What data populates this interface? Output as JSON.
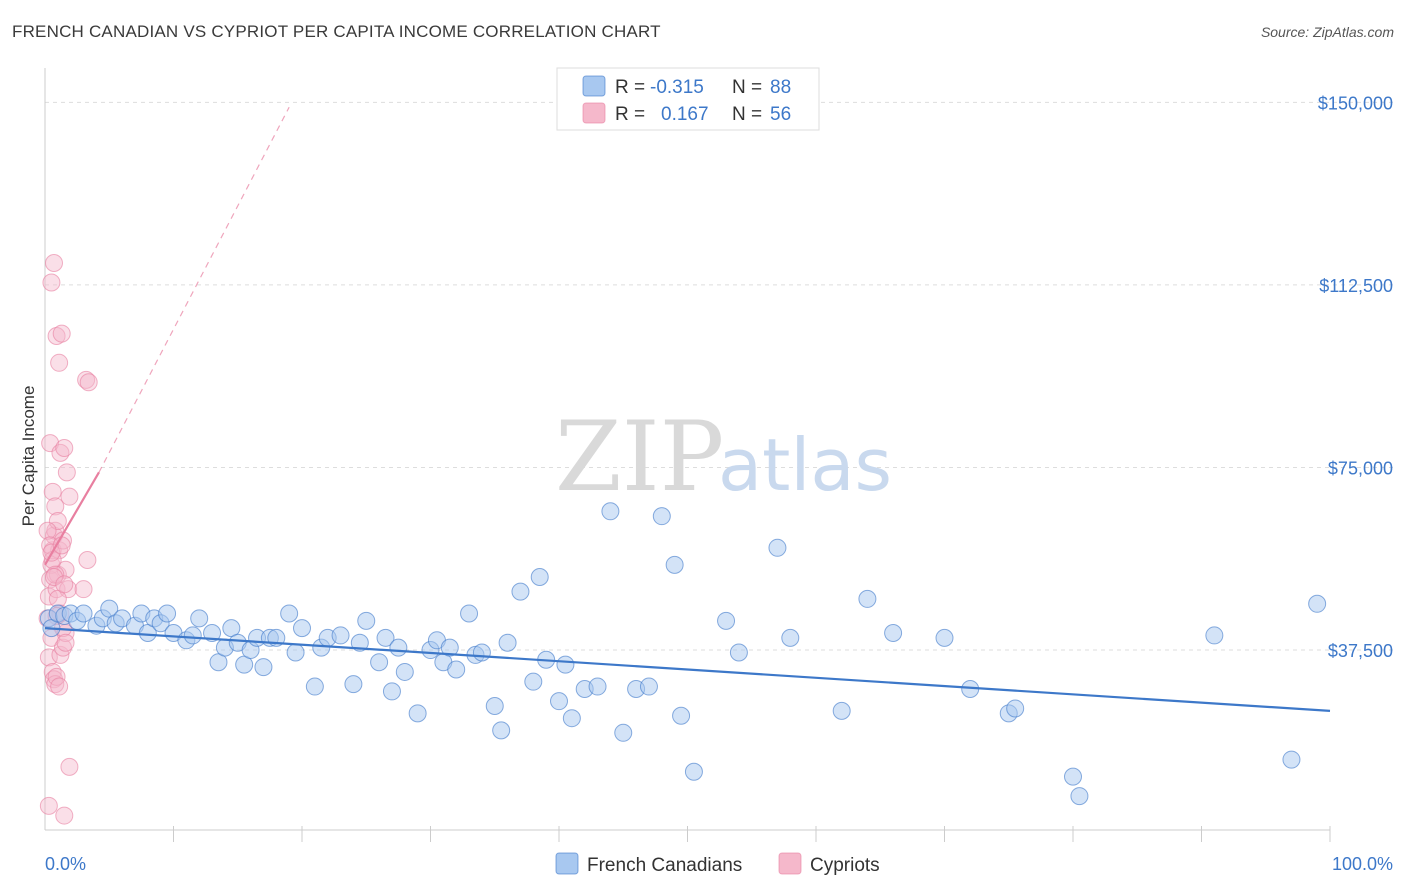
{
  "title": "FRENCH CANADIAN VS CYPRIOT PER CAPITA INCOME CORRELATION CHART",
  "source": "Source: ZipAtlas.com",
  "watermark": {
    "zip": "ZIP",
    "atlas": "atlas"
  },
  "colors": {
    "blue": "#3d78c9",
    "blue_fill": "#a8c8f0",
    "pink": "#e87fa0",
    "pink_fill": "#f5b8cb",
    "grid": "#dddddd"
  },
  "legend": {
    "rows": [
      {
        "r_label": "R =",
        "r_value": "-0.315",
        "n_label": "N =",
        "n_value": "88"
      },
      {
        "r_label": "R =",
        "r_value": "0.167",
        "n_label": "N =",
        "n_value": "56"
      }
    ]
  },
  "bottom_legend": [
    "French Canadians",
    "Cypriots"
  ],
  "chart_data": {
    "type": "scatter",
    "title": "FRENCH CANADIAN VS CYPRIOT PER CAPITA INCOME CORRELATION CHART",
    "xlabel": "",
    "ylabel": "Per Capita Income",
    "xlim": [
      0,
      100
    ],
    "ylim": [
      3000,
      155000
    ],
    "x_tick_labels": [
      "0.0%",
      "100.0%"
    ],
    "y_ticks": [
      37500,
      75000,
      112500,
      150000
    ],
    "y_tick_labels": [
      "$37,500",
      "$75,000",
      "$112,500",
      "$150,000"
    ],
    "grid": true,
    "legend_position": "top-center",
    "series": [
      {
        "name": "French Canadians",
        "color": "#3d78c9",
        "trend": {
          "x": [
            0,
            100
          ],
          "y": [
            42000,
            25000
          ]
        },
        "points": [
          [
            0.3,
            44000
          ],
          [
            0.5,
            42000
          ],
          [
            1,
            45000
          ],
          [
            1.5,
            44500
          ],
          [
            2,
            45000
          ],
          [
            2.5,
            43500
          ],
          [
            3,
            45000
          ],
          [
            4,
            42500
          ],
          [
            4.5,
            44000
          ],
          [
            5,
            46000
          ],
          [
            5.5,
            43000
          ],
          [
            6,
            44000
          ],
          [
            7,
            42500
          ],
          [
            7.5,
            45000
          ],
          [
            8,
            41000
          ],
          [
            8.5,
            44000
          ],
          [
            9,
            43000
          ],
          [
            9.5,
            45000
          ],
          [
            10,
            41000
          ],
          [
            11,
            39500
          ],
          [
            11.5,
            40500
          ],
          [
            12,
            44000
          ],
          [
            13,
            41000
          ],
          [
            13.5,
            35000
          ],
          [
            14,
            38000
          ],
          [
            14.5,
            42000
          ],
          [
            15,
            39000
          ],
          [
            15.5,
            34500
          ],
          [
            16,
            37500
          ],
          [
            16.5,
            40000
          ],
          [
            17,
            34000
          ],
          [
            17.5,
            40000
          ],
          [
            18,
            40000
          ],
          [
            19,
            45000
          ],
          [
            19.5,
            37000
          ],
          [
            20,
            42000
          ],
          [
            21,
            30000
          ],
          [
            21.5,
            38000
          ],
          [
            22,
            40000
          ],
          [
            23,
            40500
          ],
          [
            24,
            30500
          ],
          [
            24.5,
            39000
          ],
          [
            25,
            43500
          ],
          [
            26,
            35000
          ],
          [
            26.5,
            40000
          ],
          [
            27,
            29000
          ],
          [
            27.5,
            38000
          ],
          [
            28,
            33000
          ],
          [
            29,
            24500
          ],
          [
            30,
            37500
          ],
          [
            30.5,
            39500
          ],
          [
            31,
            35000
          ],
          [
            31.5,
            38000
          ],
          [
            32,
            33500
          ],
          [
            33,
            45000
          ],
          [
            33.5,
            36500
          ],
          [
            34,
            37000
          ],
          [
            35,
            26000
          ],
          [
            35.5,
            21000
          ],
          [
            36,
            39000
          ],
          [
            37,
            49500
          ],
          [
            38,
            31000
          ],
          [
            38.5,
            52500
          ],
          [
            39,
            35500
          ],
          [
            40,
            27000
          ],
          [
            40.5,
            34500
          ],
          [
            41,
            23500
          ],
          [
            42,
            29500
          ],
          [
            43,
            30000
          ],
          [
            44,
            66000
          ],
          [
            45,
            20500
          ],
          [
            46,
            29500
          ],
          [
            47,
            30000
          ],
          [
            48,
            65000
          ],
          [
            49,
            55000
          ],
          [
            49.5,
            24000
          ],
          [
            50.5,
            12500
          ],
          [
            53,
            43500
          ],
          [
            54,
            37000
          ],
          [
            57,
            58500
          ],
          [
            58,
            40000
          ],
          [
            62,
            25000
          ],
          [
            64,
            48000
          ],
          [
            66,
            41000
          ],
          [
            70,
            40000
          ],
          [
            72,
            29500
          ],
          [
            75,
            24500
          ],
          [
            75.5,
            25500
          ],
          [
            80,
            11500
          ],
          [
            80.5,
            7500
          ],
          [
            91,
            40500
          ],
          [
            97,
            15000
          ],
          [
            99,
            47000
          ]
        ]
      },
      {
        "name": "Cypriots",
        "color": "#e87fa0",
        "trend_solid": {
          "x": [
            0,
            4.2
          ],
          "y": [
            55000,
            74000
          ]
        },
        "trend_dashed": {
          "x": [
            4.2,
            19
          ],
          "y": [
            74000,
            149000
          ]
        },
        "points": [
          [
            0.2,
            44000
          ],
          [
            0.3,
            48500
          ],
          [
            0.4,
            52000
          ],
          [
            0.5,
            55000
          ],
          [
            0.6,
            58000
          ],
          [
            0.7,
            61000
          ],
          [
            0.8,
            62000
          ],
          [
            0.9,
            50000
          ],
          [
            1.0,
            53000
          ],
          [
            1.1,
            58000
          ],
          [
            0.3,
            36000
          ],
          [
            0.5,
            40000
          ],
          [
            0.6,
            33000
          ],
          [
            0.7,
            31500
          ],
          [
            0.8,
            30500
          ],
          [
            1.2,
            36500
          ],
          [
            1.4,
            38000
          ],
          [
            1.6,
            41000
          ],
          [
            0.4,
            80000
          ],
          [
            0.6,
            70000
          ],
          [
            0.8,
            67000
          ],
          [
            1.0,
            64000
          ],
          [
            1.2,
            78000
          ],
          [
            1.4,
            60000
          ],
          [
            1.6,
            54000
          ],
          [
            1.8,
            50000
          ],
          [
            0.5,
            113000
          ],
          [
            0.7,
            117000
          ],
          [
            0.9,
            102000
          ],
          [
            1.1,
            96500
          ],
          [
            1.3,
            102500
          ],
          [
            1.5,
            79000
          ],
          [
            1.7,
            74000
          ],
          [
            1.9,
            69000
          ],
          [
            3.2,
            93000
          ],
          [
            3.4,
            92500
          ],
          [
            3.0,
            50000
          ],
          [
            3.3,
            56000
          ],
          [
            0.3,
            5500
          ],
          [
            1.5,
            3500
          ],
          [
            1.9,
            13500
          ],
          [
            0.2,
            62000
          ],
          [
            0.4,
            59000
          ],
          [
            0.6,
            56000
          ],
          [
            0.8,
            53000
          ],
          [
            1.0,
            48000
          ],
          [
            1.2,
            45000
          ],
          [
            1.4,
            42000
          ],
          [
            1.6,
            39000
          ],
          [
            0.9,
            32000
          ],
          [
            1.1,
            30000
          ],
          [
            0.5,
            57500
          ],
          [
            0.7,
            52500
          ],
          [
            0.9,
            44500
          ],
          [
            1.3,
            59000
          ],
          [
            1.5,
            51000
          ]
        ]
      }
    ]
  }
}
